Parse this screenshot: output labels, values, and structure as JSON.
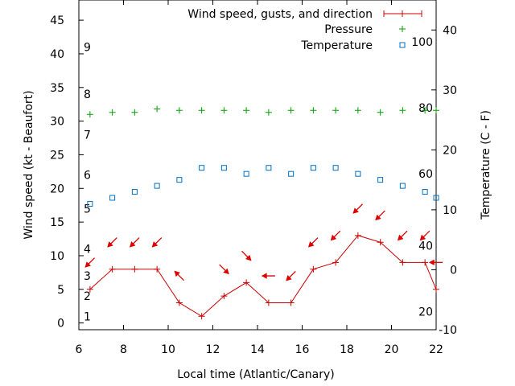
{
  "chart_data": {
    "type": "line",
    "xlabel": "Local time (Atlantic/Canary)",
    "ylabel_left": "Wind speed (kt - Beaufort)",
    "ylabel_right": "Temperature (C - F)",
    "xlim": [
      6,
      22
    ],
    "ylim_left": [
      -1,
      48
    ],
    "ylim_right": [
      -10,
      45
    ],
    "x_ticks": [
      "6",
      "8",
      "10",
      "12",
      "14",
      "16",
      "18",
      "20",
      "22"
    ],
    "y_ticks_left": [
      "0",
      "5",
      "10",
      "15",
      "20",
      "25",
      "30",
      "35",
      "40",
      "45"
    ],
    "y_ticks_right": [
      "-10",
      "0",
      "10",
      "20",
      "30",
      "40"
    ],
    "beaufort_labels": [
      {
        "label": "1",
        "value": 1
      },
      {
        "label": "2",
        "value": 4
      },
      {
        "label": "3",
        "value": 7
      },
      {
        "label": "4",
        "value": 11
      },
      {
        "label": "5",
        "value": 17
      },
      {
        "label": "6",
        "value": 22
      },
      {
        "label": "7",
        "value": 28
      },
      {
        "label": "8",
        "value": 34
      },
      {
        "label": "9",
        "value": 41
      }
    ],
    "fahrenheit_labels": [
      {
        "label": "20",
        "value": -7
      },
      {
        "label": "40",
        "value": 4
      },
      {
        "label": "60",
        "value": 16
      },
      {
        "label": "80",
        "value": 27
      },
      {
        "label": "100",
        "value": 38
      }
    ],
    "legend_position": "top-right",
    "series": [
      {
        "name": "Wind speed, gusts, and direction",
        "color": "#cc0000",
        "style": "line-with-plus-markers",
        "x": [
          6.5,
          7.5,
          8.5,
          9.5,
          10.5,
          11.5,
          12.5,
          13.5,
          14.5,
          15.5,
          16.5,
          17.5,
          18.5,
          19.5,
          20.5,
          21.5,
          22
        ],
        "y": [
          5,
          8,
          8,
          8,
          3,
          1,
          4,
          6,
          3,
          3,
          8,
          9,
          13,
          12,
          9,
          9,
          5
        ]
      },
      {
        "name": "Pressure",
        "color": "#00a000",
        "style": "plus-markers",
        "x": [
          6.5,
          7.5,
          8.5,
          9.5,
          10.5,
          11.5,
          12.5,
          13.5,
          14.5,
          15.5,
          16.5,
          17.5,
          18.5,
          19.5,
          20.5,
          21.5,
          22
        ],
        "y": [
          31.0,
          31.3,
          31.3,
          31.8,
          31.6,
          31.6,
          31.6,
          31.6,
          31.3,
          31.6,
          31.6,
          31.6,
          31.6,
          31.3,
          31.6,
          31.6,
          31.6
        ]
      },
      {
        "name": "Temperature",
        "color": "#0070c0",
        "style": "square-markers",
        "x": [
          6.5,
          7.5,
          8.5,
          9.5,
          10.5,
          11.5,
          12.5,
          13.5,
          14.5,
          15.5,
          16.5,
          17.5,
          18.5,
          19.5,
          20.5,
          21.5,
          22
        ],
        "y": [
          11,
          12,
          13,
          14,
          15,
          17,
          17,
          16,
          17,
          16,
          17,
          17,
          16,
          15,
          14,
          13,
          12
        ]
      }
    ],
    "wind_direction_arrows": {
      "color": "#dd0000",
      "x": [
        6.5,
        7.5,
        8.5,
        9.5,
        10.5,
        12.5,
        13.5,
        14.5,
        15.5,
        16.5,
        17.5,
        18.5,
        19.5,
        20.5,
        21.5,
        22
      ],
      "y": [
        9,
        12,
        12,
        12,
        7,
        8,
        10,
        7,
        7,
        12,
        13,
        17,
        16,
        13,
        13,
        9
      ],
      "direction_deg": [
        315,
        315,
        315,
        315,
        225,
        45,
        45,
        270,
        315,
        315,
        315,
        315,
        315,
        315,
        315,
        270
      ]
    }
  }
}
